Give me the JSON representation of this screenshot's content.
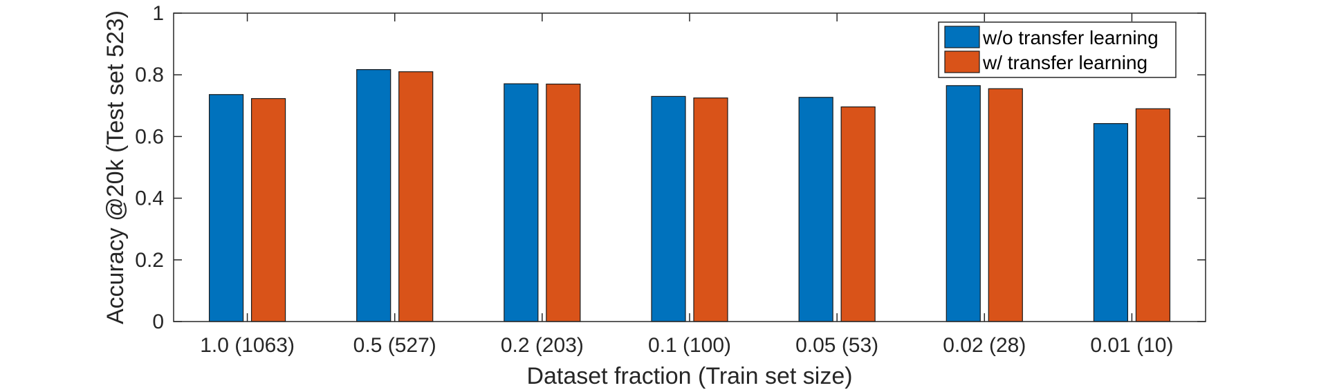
{
  "chart_data": {
    "type": "bar",
    "title": "",
    "xlabel": "Dataset fraction (Train set size)",
    "ylabel": "Accuracy @20k (Test set 523)",
    "categories": [
      "1.0 (1063)",
      "0.5 (527)",
      "0.2 (203)",
      "0.1 (100)",
      "0.05 (53)",
      "0.02 (28)",
      "0.01 (10)"
    ],
    "series": [
      {
        "name": "w/o transfer learning",
        "color": "#0072BD",
        "values": [
          0.736,
          0.817,
          0.771,
          0.73,
          0.727,
          0.765,
          0.642
        ]
      },
      {
        "name": "w/ transfer learning",
        "color": "#D95319",
        "values": [
          0.723,
          0.81,
          0.77,
          0.725,
          0.696,
          0.755,
          0.69
        ]
      }
    ],
    "ylim": [
      0,
      1
    ],
    "yticks": [
      0,
      0.2,
      0.4,
      0.6,
      0.8,
      1
    ],
    "ytick_labels": [
      "0",
      "0.2",
      "0.4",
      "0.6",
      "0.8",
      "1"
    ],
    "grid": false,
    "legend_position": "top-right"
  }
}
